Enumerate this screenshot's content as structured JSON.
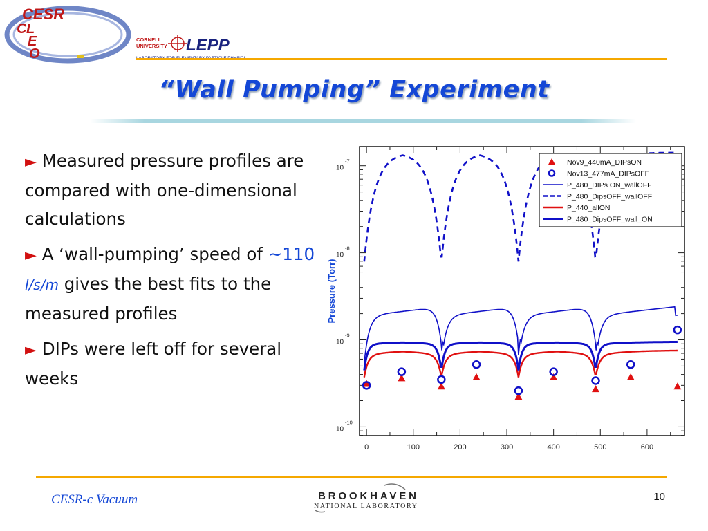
{
  "header": {
    "left_logo_text": "CESR CLEO",
    "right_logo": {
      "top": "CORNELL",
      "mid": "UNIVERSITY",
      "brand": "LEPP",
      "sub": "LABORATORY FOR ELEMENTARY-PARTICLE PHYSICS"
    }
  },
  "slide": {
    "title": "“Wall Pumping” Experiment",
    "bullets": [
      {
        "arrow": "►",
        "text": "Measured  pressure profiles are compared with one-dimensional calculations"
      },
      {
        "arrow": "►",
        "pre": "A ‘wall-pumping’ speed of ",
        "speed": "~110",
        "unit": "l/s/m",
        "post": " gives the best fits to the measured profiles"
      },
      {
        "arrow": "►",
        "text": " DIPs were left off for several weeks"
      }
    ]
  },
  "footer": {
    "left": "CESR-c Vacuum",
    "page": "10",
    "lab_logo_top": "BROOKHAVEN",
    "lab_logo_bottom": "NATIONAL LABORATORY"
  },
  "colors": {
    "title": "#1447d6",
    "accent_line": "#f5a800",
    "arrow": "#d21010",
    "series_blue": "#1010c8",
    "series_red": "#e01010"
  },
  "chart_data": {
    "type": "line",
    "ylabel": "Pressure (Torr)",
    "xlabel": "",
    "xlim": [
      -15,
      680
    ],
    "ylim_log10": [
      -10.1,
      -6.78
    ],
    "yscale": "log",
    "x_ticks": [
      0,
      100,
      200,
      300,
      400,
      500,
      600
    ],
    "y_ticks": [
      {
        "value": -10,
        "label": "-10"
      },
      {
        "value": -9,
        "label": "-9"
      },
      {
        "value": -8,
        "label": "-8"
      },
      {
        "value": -7,
        "label": "-7"
      }
    ],
    "y_tick_base": "10",
    "series": [
      {
        "name": "Nov9_440mA_DIPsON",
        "kind": "marker",
        "marker": "triangle",
        "color": "#e01010",
        "x": [
          0,
          75,
          160,
          235,
          325,
          400,
          490,
          565,
          665
        ],
        "y": [
          3.1e-10,
          3.6e-10,
          2.9e-10,
          3.7e-10,
          2.2e-10,
          3.7e-10,
          2.7e-10,
          3.7e-10,
          2.9e-10
        ]
      },
      {
        "name": "Nov13_477mA_DIPsOFF",
        "kind": "marker",
        "marker": "circle",
        "color": "#1010c8",
        "x": [
          0,
          75,
          160,
          235,
          325,
          400,
          490,
          565,
          665
        ],
        "y": [
          3e-10,
          4.3e-10,
          3.5e-10,
          5.2e-10,
          2.6e-10,
          4.3e-10,
          3.4e-10,
          5.2e-10,
          1.3e-09
        ]
      },
      {
        "name": "P_480_DIPs ON_wallOFF",
        "kind": "line",
        "style": "solid",
        "width": 1.6,
        "color": "#1010c8"
      },
      {
        "name": "P_480_DipsOFF_wallOFF",
        "kind": "line",
        "style": "dashed",
        "width": 2.6,
        "color": "#1010c8"
      },
      {
        "name": "P_440_allON",
        "kind": "line",
        "style": "solid",
        "width": 2.4,
        "color": "#e01010"
      },
      {
        "name": "P_480_DipsOFF_wall_ON",
        "kind": "line",
        "style": "solid",
        "width": 3.0,
        "color": "#1010c8"
      }
    ],
    "legend_position": "top-right"
  }
}
